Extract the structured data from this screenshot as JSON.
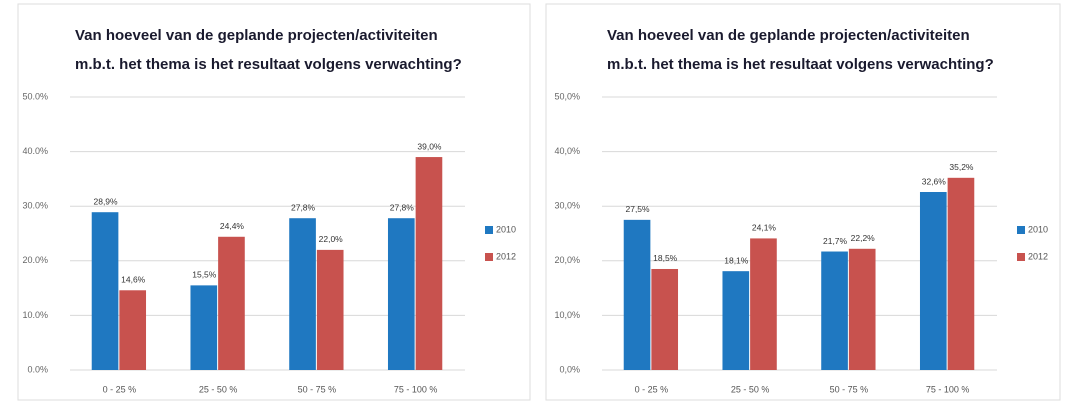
{
  "chart_data": [
    {
      "type": "bar",
      "title": [
        "Van hoeveel van de geplande projecten/activiteiten",
        "m.b.t. het thema is het resultaat volgens verwachting?"
      ],
      "categories": [
        "0 - 25 %",
        "25 - 50 %",
        "50 - 75 %",
        "75 - 100 %"
      ],
      "series": [
        {
          "name": "2010",
          "color": "#1f78c1",
          "values": [
            28.9,
            15.5,
            27.8,
            27.8
          ],
          "value_labels": [
            "28,9%",
            "15,5%",
            "27,8%",
            "27,8%"
          ]
        },
        {
          "name": "2012",
          "color": "#c8524e",
          "values": [
            14.6,
            24.4,
            22.0,
            39.0
          ],
          "value_labels": [
            "14,6%",
            "24,4%",
            "22,0%",
            "39,0%"
          ]
        }
      ],
      "ylim": [
        0,
        50
      ],
      "yticks": [
        {
          "value": 0,
          "label": "0.0%"
        },
        {
          "value": 10,
          "label": "10.0%"
        },
        {
          "value": 20,
          "label": "20.0%"
        },
        {
          "value": 30,
          "label": "30.0%"
        },
        {
          "value": 40,
          "label": "40.0%"
        },
        {
          "value": 50,
          "label": "50.0%"
        }
      ],
      "grid": true,
      "legend": "right"
    },
    {
      "type": "bar",
      "title": [
        "Van hoeveel van de geplande projecten/activiteiten",
        "m.b.t. het thema is het resultaat volgens verwachting?"
      ],
      "categories": [
        "0 - 25 %",
        "25 - 50 %",
        "50 - 75 %",
        "75 - 100 %"
      ],
      "series": [
        {
          "name": "2010",
          "color": "#1f78c1",
          "values": [
            27.5,
            18.1,
            21.7,
            32.6
          ],
          "value_labels": [
            "27,5%",
            "18,1%",
            "21,7%",
            "32,6%"
          ]
        },
        {
          "name": "2012",
          "color": "#c8524e",
          "values": [
            18.5,
            24.1,
            22.2,
            35.2
          ],
          "value_labels": [
            "18,5%",
            "24,1%",
            "22,2%",
            "35,2%"
          ]
        }
      ],
      "ylim": [
        0,
        50
      ],
      "yticks": [
        {
          "value": 0,
          "label": "0,0%"
        },
        {
          "value": 10,
          "label": "10,0%"
        },
        {
          "value": 20,
          "label": "20,0%"
        },
        {
          "value": 30,
          "label": "30,0%"
        },
        {
          "value": 40,
          "label": "40,0%"
        },
        {
          "value": 50,
          "label": "50,0%"
        }
      ],
      "grid": true,
      "legend": "right"
    }
  ]
}
